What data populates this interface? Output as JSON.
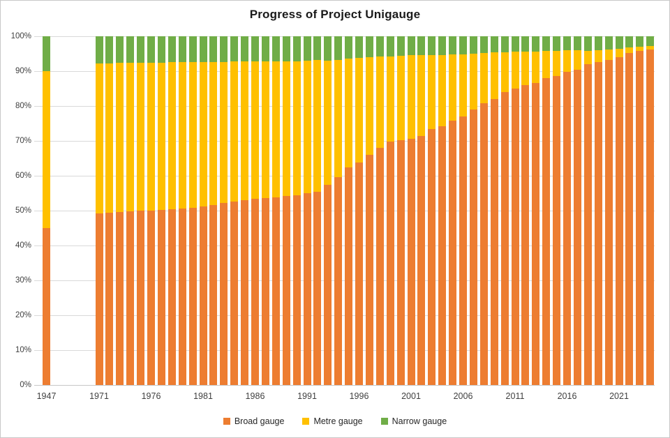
{
  "title": "Progress of Project Unigauge",
  "y_axis": {
    "tick_labels": [
      "0%",
      "10%",
      "20%",
      "30%",
      "40%",
      "50%",
      "60%",
      "70%",
      "80%",
      "90%",
      "100%"
    ]
  },
  "x_axis": {
    "shown_labels": [
      "1947",
      "1971",
      "1976",
      "1981",
      "1986",
      "1991",
      "1996",
      "2001",
      "2006",
      "2011",
      "2016",
      "2021"
    ]
  },
  "colors": {
    "broad_gauge": "#ED7D31",
    "metre_gauge": "#FFC000",
    "narrow_gauge": "#70AD47",
    "gridline": "#D9D9D9",
    "axis_text": "#404040"
  },
  "chart_data": {
    "type": "bar",
    "stacked": true,
    "percent_stacked": true,
    "title": "Progress of Project Unigauge",
    "xlabel": "",
    "ylabel": "",
    "ylim": [
      0,
      100
    ],
    "y_ticks": [
      0,
      10,
      20,
      30,
      40,
      50,
      60,
      70,
      80,
      90,
      100
    ],
    "grid": true,
    "legend_position": "bottom",
    "note_layout": "single bar for 1947, gap, then continuous annual bars 1971-2024",
    "categories": [
      1947,
      1971,
      1972,
      1973,
      1974,
      1975,
      1976,
      1977,
      1978,
      1979,
      1980,
      1981,
      1982,
      1983,
      1984,
      1985,
      1986,
      1987,
      1988,
      1989,
      1990,
      1991,
      1992,
      1993,
      1994,
      1995,
      1996,
      1997,
      1998,
      1999,
      2000,
      2001,
      2002,
      2003,
      2004,
      2005,
      2006,
      2007,
      2008,
      2009,
      2010,
      2011,
      2012,
      2013,
      2014,
      2015,
      2016,
      2017,
      2018,
      2019,
      2020,
      2021,
      2022,
      2023,
      2024
    ],
    "series": [
      {
        "name": "Broad gauge",
        "color": "#ED7D31",
        "values": [
          45.0,
          49.3,
          49.5,
          49.6,
          49.8,
          50.0,
          50.1,
          50.3,
          50.4,
          50.6,
          50.8,
          51.2,
          51.7,
          52.2,
          52.7,
          53.1,
          53.4,
          53.6,
          53.9,
          54.2,
          54.5,
          55.0,
          55.4,
          57.5,
          59.6,
          62.5,
          63.8,
          66.0,
          68.0,
          69.9,
          70.3,
          70.7,
          71.4,
          73.4,
          74.3,
          75.9,
          77.0,
          79.0,
          80.9,
          82.1,
          84.1,
          85.0,
          86.1,
          86.7,
          88.0,
          88.6,
          89.8,
          90.5,
          92.0,
          92.7,
          93.3,
          94.1,
          95.2,
          95.8,
          96.3
        ]
      },
      {
        "name": "Metre gauge",
        "color": "#FFC000",
        "values": [
          45.0,
          43.0,
          42.8,
          42.8,
          42.6,
          42.5,
          42.4,
          42.2,
          42.2,
          42.0,
          41.8,
          41.5,
          41.0,
          40.5,
          40.1,
          39.7,
          39.4,
          39.2,
          39.0,
          38.7,
          38.4,
          38.1,
          37.8,
          35.6,
          33.6,
          31.1,
          30.1,
          28.0,
          26.2,
          24.3,
          24.1,
          23.9,
          23.2,
          21.3,
          20.4,
          19.0,
          17.9,
          16.1,
          14.3,
          13.4,
          11.4,
          10.6,
          9.6,
          9.0,
          7.8,
          7.3,
          6.2,
          5.6,
          3.8,
          3.3,
          3.0,
          2.4,
          1.6,
          1.2,
          1.0
        ]
      },
      {
        "name": "Narrow gauge",
        "color": "#70AD47",
        "values": [
          10.0,
          7.7,
          7.7,
          7.6,
          7.6,
          7.5,
          7.5,
          7.5,
          7.4,
          7.4,
          7.4,
          7.3,
          7.3,
          7.3,
          7.2,
          7.2,
          7.2,
          7.2,
          7.1,
          7.1,
          7.1,
          6.9,
          6.8,
          6.9,
          6.8,
          6.4,
          6.1,
          6.0,
          5.8,
          5.8,
          5.6,
          5.4,
          5.4,
          5.3,
          5.3,
          5.1,
          5.1,
          4.9,
          4.8,
          4.5,
          4.5,
          4.4,
          4.3,
          4.3,
          4.2,
          4.1,
          4.0,
          3.9,
          4.2,
          4.0,
          3.7,
          3.5,
          3.2,
          3.0,
          2.7
        ]
      }
    ]
  }
}
